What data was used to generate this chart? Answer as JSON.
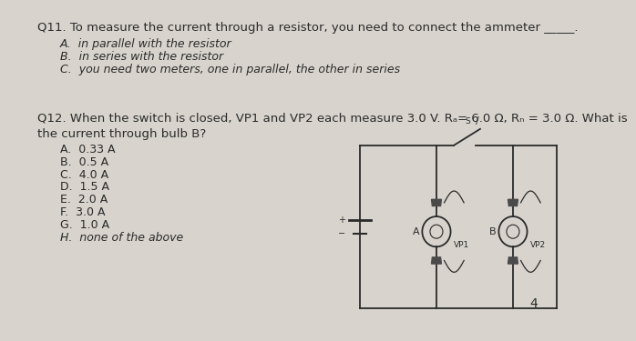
{
  "bg_color": "#d8d4cd",
  "text_color": "#2a2a2a",
  "page_number": "4",
  "q11_title": "Q11. To measure the current through a resistor, you need to connect the ammeter _____.",
  "q11_options": [
    "A.  in parallel with the resistor",
    "B.  in series with the resistor",
    "C.  you need two meters, one in parallel, the other in series"
  ],
  "q12_line1": "Q12. When the switch is closed, VP1 and VP2 each measure 3.0 V. R",
  "q12_line1b": "A",
  "q12_line1c": "= 6.0 Ω, R",
  "q12_line1d": "B",
  "q12_line1e": " = 3.0 Ω. What is",
  "q12_line2": "the current through bulb B?",
  "q12_options": [
    "A.  0.33 A",
    "B.  0.5 A",
    "C.  4.0 A",
    "D.  1.5 A",
    "E.  2.0 A",
    "F.  3.0 A",
    "G.  1.0 A",
    "H.  none of the above"
  ],
  "font_size_title": 9.5,
  "font_size_opt": 9.0,
  "lc": "#2a2a2a",
  "clip_color": "#4a4a4a",
  "lw": 1.3
}
